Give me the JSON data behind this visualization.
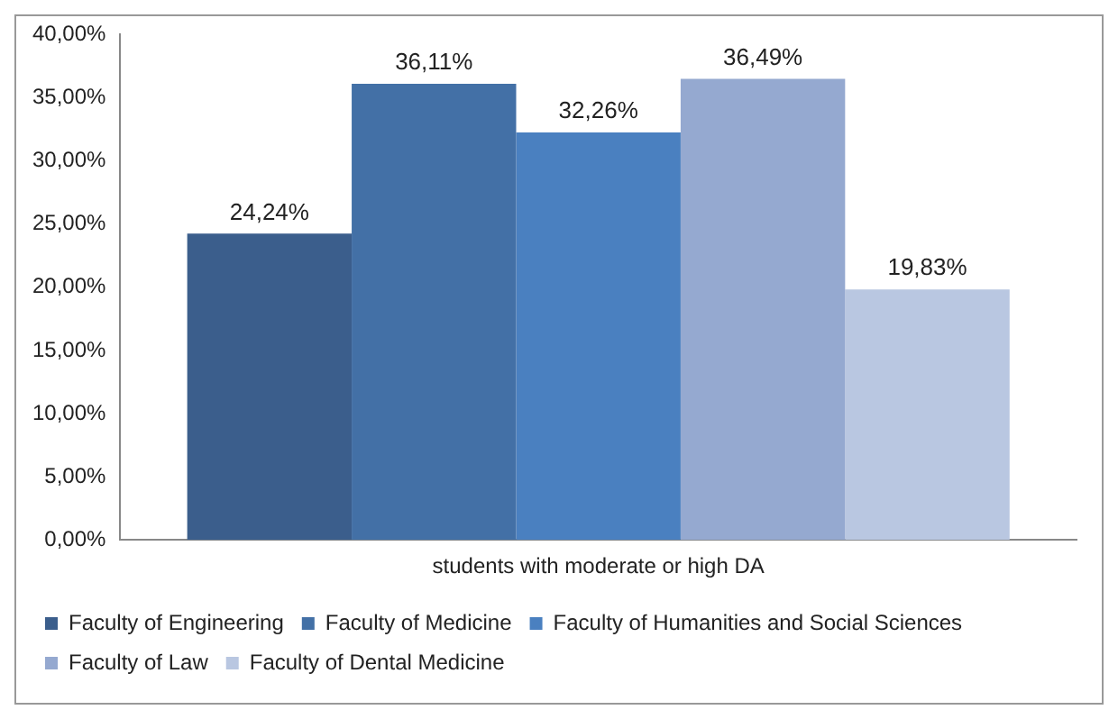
{
  "chart_data": {
    "type": "bar",
    "categories": [
      "students with moderate or high DA"
    ],
    "series": [
      {
        "name": "Faculty of Engineering",
        "color": "#3b5e8c",
        "values": [
          24.24
        ],
        "value_labels": [
          "24,24%"
        ]
      },
      {
        "name": "Faculty of Medicine",
        "color": "#4370a6",
        "values": [
          36.11
        ],
        "value_labels": [
          "36,11%"
        ]
      },
      {
        "name": "Faculty of Humanities and Social Sciences",
        "color": "#4a80c0",
        "values": [
          32.26
        ],
        "value_labels": [
          "32,26%"
        ]
      },
      {
        "name": "Faculty of Law",
        "color": "#95a9d0",
        "values": [
          36.49
        ],
        "value_labels": [
          "36,49%"
        ]
      },
      {
        "name": "Faculty of Dental Medicine",
        "color": "#b9c7e1",
        "values": [
          19.83
        ],
        "value_labels": [
          "19,83%"
        ]
      }
    ],
    "ylim": [
      0,
      40
    ],
    "yticks": [
      {
        "value": 0,
        "label": "0,00%"
      },
      {
        "value": 5,
        "label": "5,00%"
      },
      {
        "value": 10,
        "label": "10,00%"
      },
      {
        "value": 15,
        "label": "15,00%"
      },
      {
        "value": 20,
        "label": "20,00%"
      },
      {
        "value": 25,
        "label": "25,00%"
      },
      {
        "value": 30,
        "label": "30,00%"
      },
      {
        "value": 35,
        "label": "35,00%"
      },
      {
        "value": 40,
        "label": "40,00%"
      }
    ],
    "grid": false,
    "legend": "bottom"
  }
}
